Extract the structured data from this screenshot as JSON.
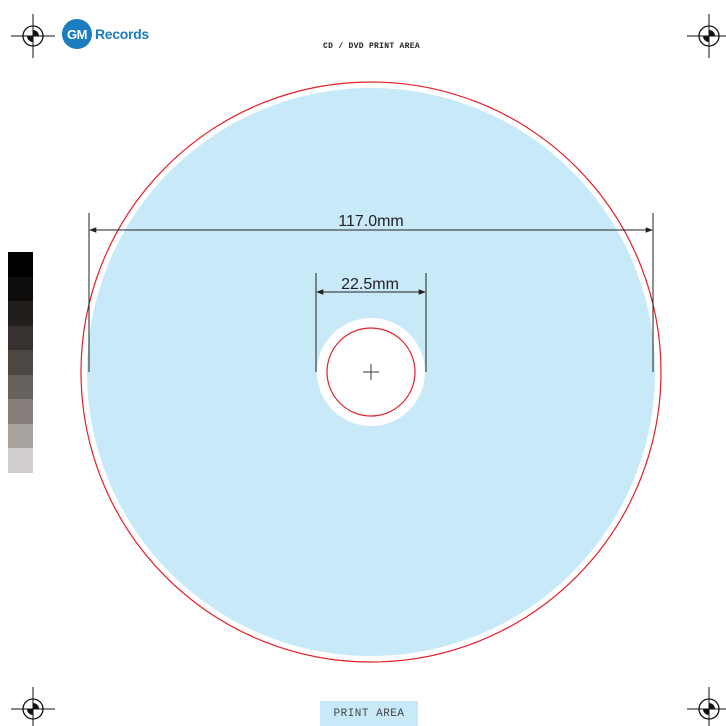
{
  "brand": {
    "badge_text": "GM",
    "name": "Records",
    "color": "#1a7dc0"
  },
  "heading": "CD / DVD PRINT AREA",
  "dimensions": {
    "outer_label": "117.0mm",
    "inner_label": "22.5mm"
  },
  "footer_label": "PRINT AREA",
  "colors": {
    "print_area_fill": "#c8e9f8",
    "trim_line": "#e0202a",
    "dimension_line": "#222222",
    "registration_mark": "#111111"
  },
  "grayscale_swatches": [
    "#000000",
    "#0f0d0c",
    "#221e1c",
    "#37322f",
    "#4d4744",
    "#68625f",
    "#867f7c",
    "#aaa4a1",
    "#d2cecd"
  ],
  "icons": {
    "registration_marks": [
      "registration-mark-icon",
      "registration-mark-icon",
      "registration-mark-icon",
      "registration-mark-icon"
    ],
    "center_mark": "crosshair-icon"
  }
}
